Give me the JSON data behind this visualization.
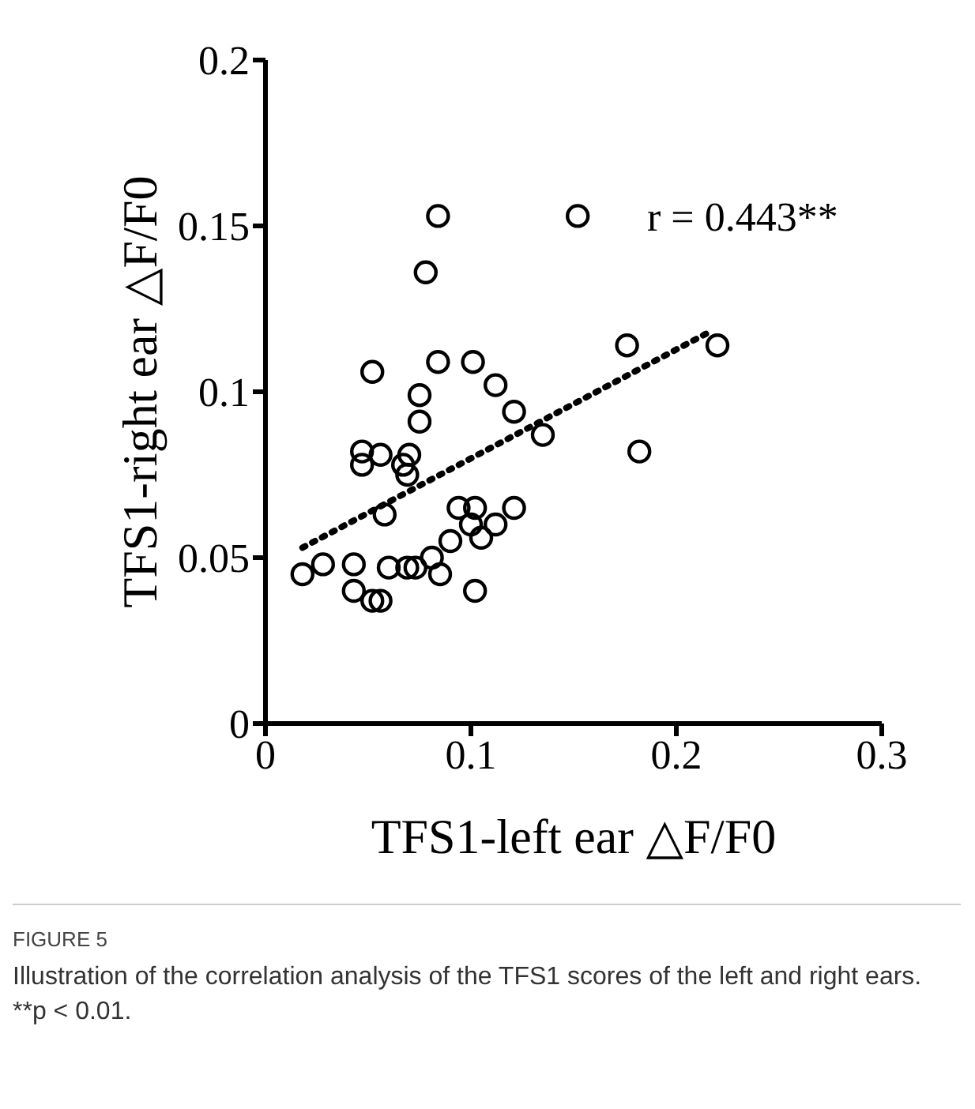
{
  "chart_data": {
    "type": "scatter",
    "xlabel": "TFS1-left ear △F/F0",
    "ylabel": "TFS1-right ear △F/F0",
    "xlim": [
      0,
      0.3
    ],
    "xticks": [
      0,
      0.1,
      0.2,
      0.3
    ],
    "ylim": [
      0,
      0.2
    ],
    "yticks": [
      0,
      0.05,
      0.1,
      0.15,
      0.2
    ],
    "grid": false,
    "legend": false,
    "annotations": [
      "r = 0.443**",
      "FIGURE 5",
      "Illustration of the correlation analysis of the TFS1 scores of the left and right ears. **p < 0.01."
    ],
    "series": [
      {
        "color": "#000000",
        "marker": "circle",
        "x": [
          0.084,
          0.152,
          0.078,
          0.052,
          0.084,
          0.101,
          0.112,
          0.121,
          0.135,
          0.075,
          0.075,
          0.047,
          0.047,
          0.056,
          0.07,
          0.067,
          0.069,
          0.058,
          0.018,
          0.028,
          0.043,
          0.043,
          0.052,
          0.056,
          0.06,
          0.069,
          0.073,
          0.081,
          0.085,
          0.09,
          0.094,
          0.102,
          0.1,
          0.105,
          0.112,
          0.121,
          0.102,
          0.176,
          0.22,
          0.182
        ],
        "values": [
          0.153,
          0.153,
          0.136,
          0.106,
          0.109,
          0.109,
          0.102,
          0.094,
          0.087,
          0.099,
          0.091,
          0.082,
          0.078,
          0.081,
          0.081,
          0.078,
          0.075,
          0.063,
          0.045,
          0.048,
          0.048,
          0.04,
          0.037,
          0.037,
          0.047,
          0.047,
          0.047,
          0.05,
          0.045,
          0.055,
          0.065,
          0.065,
          0.06,
          0.056,
          0.06,
          0.065,
          0.04,
          0.114,
          0.114,
          0.082
        ]
      },
      {
        "type": "line",
        "color": "#000000",
        "marker": "none",
        "line_style": "dotted",
        "x": [
          0.018,
          0.216
        ],
        "values": [
          0.053,
          0.118
        ]
      }
    ]
  }
}
